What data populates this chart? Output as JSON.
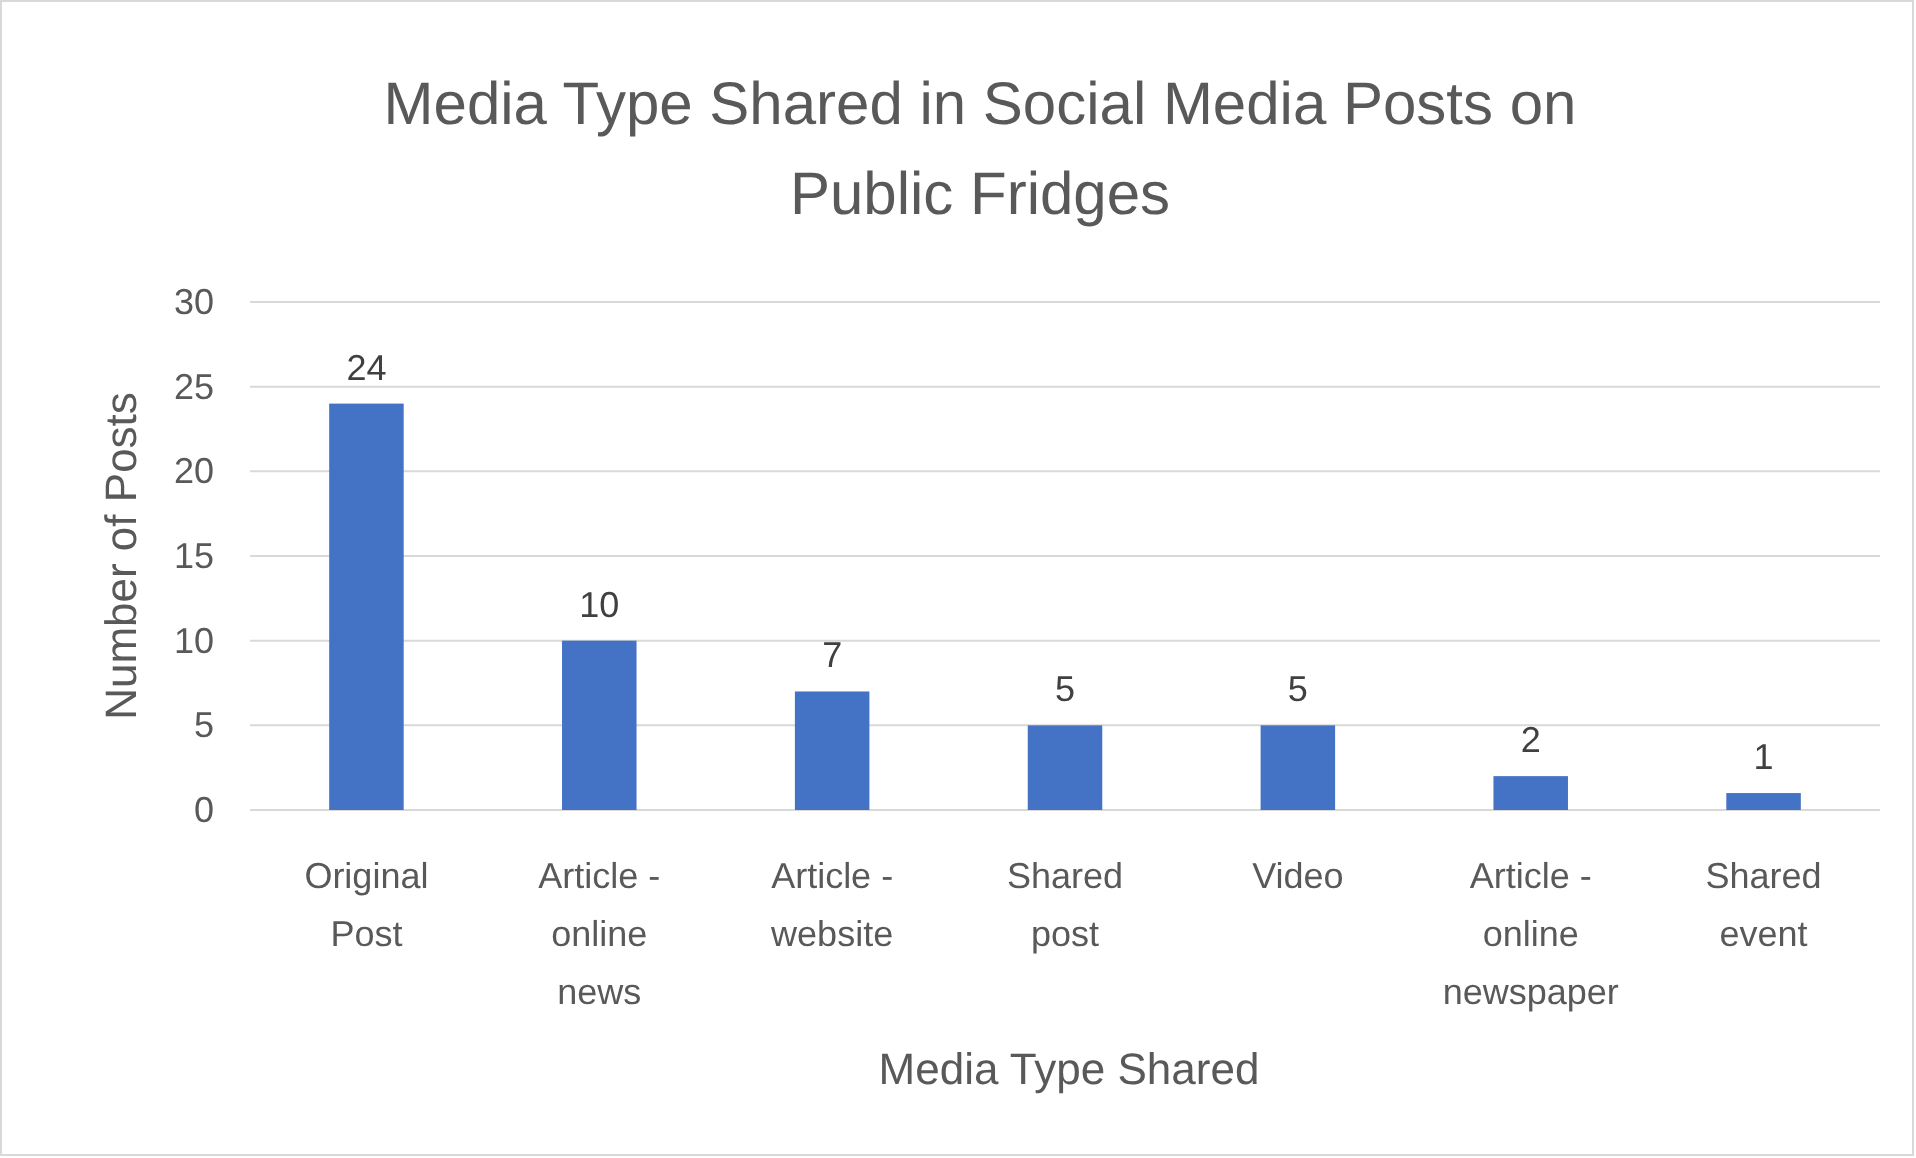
{
  "chart_data": {
    "type": "bar",
    "title": "Media Type Shared in Social Media Posts on Public Fridges",
    "xlabel": "Media Type Shared",
    "ylabel": "Number of Posts",
    "categories": [
      "Original Post",
      "Article - online news",
      "Article - website",
      "Shared post",
      "Video",
      "Article - online newspaper",
      "Shared event"
    ],
    "values": [
      24,
      10,
      7,
      5,
      5,
      2,
      1
    ],
    "color": "#4472c4",
    "data_labels": true,
    "ylim": [
      0,
      30
    ],
    "yticks": [
      0,
      5,
      10,
      15,
      20,
      25,
      30
    ],
    "grid": "y"
  }
}
